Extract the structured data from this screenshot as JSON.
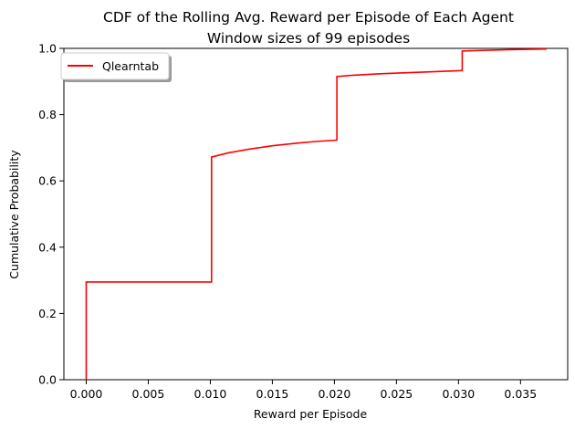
{
  "chart_data": {
    "type": "line",
    "title": "CDF of the Rolling Avg. Reward per Episode of Each Agent",
    "subtitle": "Window sizes of 99 episodes",
    "xlabel": "Reward per Episode",
    "ylabel": "Cumulative Probability",
    "xlim": [
      -0.0018,
      0.0388
    ],
    "ylim": [
      0.0,
      1.0
    ],
    "xticks": [
      0.0,
      0.005,
      0.01,
      0.015,
      0.02,
      0.025,
      0.03,
      0.035
    ],
    "xtick_labels": [
      "0.000",
      "0.005",
      "0.010",
      "0.015",
      "0.020",
      "0.025",
      "0.030",
      "0.035"
    ],
    "yticks": [
      0.0,
      0.2,
      0.4,
      0.6,
      0.8,
      1.0
    ],
    "ytick_labels": [
      "0.0",
      "0.2",
      "0.4",
      "0.6",
      "0.8",
      "1.0"
    ],
    "grid": false,
    "legend_position": "top-left",
    "series": [
      {
        "name": "Qlearntab",
        "color": "#ff0000",
        "x": [
          0.0,
          0.0,
          0.0101,
          0.0101,
          0.0115,
          0.013,
          0.015,
          0.017,
          0.0185,
          0.0202,
          0.0202,
          0.0215,
          0.0235,
          0.0255,
          0.0275,
          0.0303,
          0.0303,
          0.032,
          0.034,
          0.0371
        ],
        "y": [
          0.0,
          0.295,
          0.295,
          0.672,
          0.685,
          0.695,
          0.706,
          0.714,
          0.719,
          0.723,
          0.915,
          0.919,
          0.923,
          0.926,
          0.929,
          0.933,
          0.992,
          0.994,
          0.996,
          0.998
        ]
      }
    ]
  }
}
